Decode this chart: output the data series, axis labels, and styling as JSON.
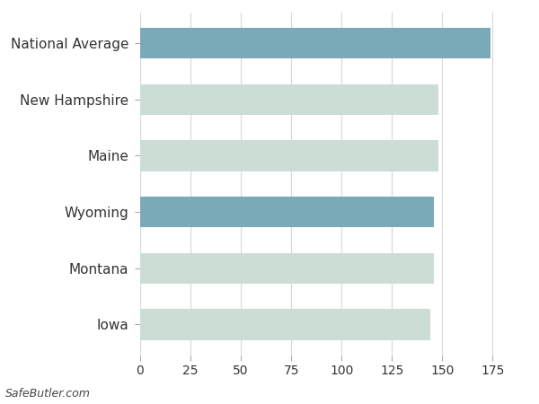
{
  "categories": [
    "Iowa",
    "Montana",
    "Wyoming",
    "Maine",
    "New Hampshire",
    "National Average"
  ],
  "values": [
    144,
    146,
    146,
    148,
    148,
    174
  ],
  "bar_colors": [
    "#ccddd6",
    "#ccddd6",
    "#7aaab8",
    "#ccddd6",
    "#ccddd6",
    "#7aaab8"
  ],
  "xlim": [
    0,
    190
  ],
  "xticks": [
    0,
    25,
    50,
    75,
    100,
    125,
    150,
    175
  ],
  "background_color": "#ffffff",
  "grid_color": "#d8d8d8",
  "watermark": "SafeButler.com",
  "bar_height": 0.55,
  "label_fontsize": 11,
  "tick_fontsize": 10
}
